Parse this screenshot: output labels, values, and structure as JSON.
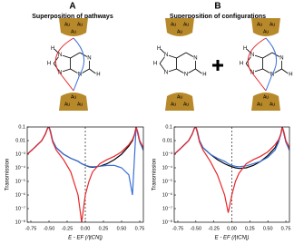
{
  "panels": [
    {
      "letter": "A",
      "title": "Superposition of pathways"
    },
    {
      "letter": "B",
      "title": "Superposition of configurations"
    }
  ],
  "electrode_label": "Au",
  "molecules": [
    {
      "atoms": [
        "N",
        "N",
        "N",
        "N",
        "H",
        "H",
        "H"
      ]
    },
    {
      "atoms": [
        "N",
        "N",
        "N",
        "N",
        "H",
        "H",
        "H"
      ]
    },
    {
      "atoms": [
        "N",
        "N",
        "N",
        "N",
        "H",
        "H",
        "H"
      ]
    }
  ],
  "chart_data": [
    {
      "type": "line",
      "log_y": true,
      "ylabel": "Transmission",
      "xlabel": "E - EF (/|tCN|)",
      "xlim": [
        -0.8,
        0.8
      ],
      "ylim": [
        1e-08,
        0.1
      ],
      "vline": 0,
      "xticks": [
        -0.75,
        {
          "value": -0.5,
          "label": "-0.50"
        },
        -0.25,
        {
          "value": 0,
          "label": "0.00"
        },
        0.25,
        {
          "value": 0.5,
          "label": "0.50"
        },
        0.75
      ],
      "yticks": [
        0.1,
        0.01,
        {
          "value": 0.001,
          "label": "10⁻³"
        },
        {
          "value": 0.0001,
          "label": "10⁻⁴"
        },
        {
          "value": 1e-05,
          "label": "10⁻⁵"
        },
        {
          "value": 1e-06,
          "label": "10⁻⁶"
        },
        {
          "value": 1e-07,
          "label": "10⁻⁷"
        },
        {
          "value": 1e-08,
          "label": "10⁻⁸"
        }
      ],
      "x": [
        -0.8,
        -0.7,
        -0.6,
        -0.55,
        -0.52,
        -0.5,
        -0.48,
        -0.45,
        -0.4,
        -0.3,
        -0.2,
        -0.1,
        -0.05,
        0,
        0.05,
        0.1,
        0.2,
        0.3,
        0.4,
        0.5,
        0.6,
        0.65,
        0.68,
        0.7,
        0.72,
        0.75,
        0.8
      ],
      "series": [
        {
          "color": "#e8262a",
          "values": [
            0.001,
            0.003,
            0.01,
            0.03,
            0.08,
            0.1,
            0.04,
            0.008,
            0.002,
            0.0004,
            5e-05,
            1e-06,
            1e-08,
            1e-06,
            1e-05,
            5e-05,
            0.0002,
            0.0004,
            0.0007,
            0.0015,
            0.005,
            0.012,
            0.03,
            0.1,
            0.05,
            0.01,
            0.003
          ]
        },
        {
          "color": "#3a6fd8",
          "values": [
            0.001,
            0.003,
            0.01,
            0.03,
            0.08,
            0.1,
            0.05,
            0.01,
            0.003,
            0.001,
            0.0005,
            0.0003,
            0.0002,
            0.00015,
            0.00013,
            0.00012,
            0.00013,
            0.00015,
            0.00015,
            0.0001,
            3e-05,
            1e-06,
            0.001,
            0.1,
            0.04,
            0.008,
            0.002
          ]
        },
        {
          "color": "#000000",
          "values": [
            0.001,
            0.003,
            0.01,
            0.03,
            0.08,
            0.1,
            0.05,
            0.01,
            0.003,
            0.001,
            0.0005,
            0.0003,
            0.0002,
            0.00015,
            0.00012,
            0.00011,
            0.00013,
            0.0002,
            0.0004,
            0.001,
            0.004,
            0.01,
            0.03,
            0.1,
            0.04,
            0.008,
            0.002
          ]
        }
      ]
    },
    {
      "type": "line",
      "log_y": true,
      "ylabel": "Transmission",
      "xlabel": "E - EF (/|tCN|)",
      "xlim": [
        -0.8,
        0.8
      ],
      "ylim": [
        1e-08,
        0.1
      ],
      "vline": 0,
      "xticks": [
        -0.75,
        {
          "value": -0.5,
          "label": "-0.50"
        },
        -0.25,
        {
          "value": 0,
          "label": "0.00"
        },
        0.25,
        {
          "value": 0.5,
          "label": "0.50"
        },
        0.75
      ],
      "yticks": [
        0.1,
        0.01,
        {
          "value": 0.001,
          "label": "10⁻³"
        },
        {
          "value": 0.0001,
          "label": "10⁻⁴"
        },
        {
          "value": 1e-05,
          "label": "10⁻⁵"
        },
        {
          "value": 1e-06,
          "label": "10⁻⁶"
        },
        {
          "value": 1e-07,
          "label": "10⁻⁷"
        },
        {
          "value": 1e-08,
          "label": "10⁻⁸"
        }
      ],
      "x": [
        -0.8,
        -0.7,
        -0.6,
        -0.55,
        -0.52,
        -0.5,
        -0.48,
        -0.45,
        -0.4,
        -0.3,
        -0.2,
        -0.1,
        -0.05,
        0,
        0.05,
        0.1,
        0.2,
        0.3,
        0.4,
        0.5,
        0.6,
        0.65,
        0.68,
        0.7,
        0.72,
        0.75,
        0.8
      ],
      "series": [
        {
          "color": "#e8262a",
          "values": [
            0.001,
            0.003,
            0.01,
            0.03,
            0.08,
            0.1,
            0.04,
            0.008,
            0.002,
            0.0003,
            3e-05,
            1e-06,
            5e-08,
            1e-06,
            1e-05,
            4e-05,
            0.0002,
            0.0004,
            0.0007,
            0.0015,
            0.005,
            0.012,
            0.03,
            0.1,
            0.05,
            0.01,
            0.003
          ]
        },
        {
          "color": "#3a6fd8",
          "values": [
            0.001,
            0.003,
            0.01,
            0.03,
            0.08,
            0.1,
            0.05,
            0.01,
            0.003,
            0.001,
            0.0005,
            0.0003,
            0.0002,
            0.00015,
            0.00013,
            0.00012,
            0.00014,
            0.0002,
            0.0003,
            0.0006,
            0.002,
            0.008,
            0.03,
            0.1,
            0.04,
            0.008,
            0.002
          ]
        },
        {
          "color": "#000000",
          "values": [
            0.001,
            0.003,
            0.01,
            0.03,
            0.08,
            0.1,
            0.05,
            0.01,
            0.003,
            0.001,
            0.0004,
            0.0002,
            0.00015,
            0.00012,
            0.0001,
            9e-05,
            0.0001,
            0.00015,
            0.0003,
            0.0008,
            0.003,
            0.01,
            0.03,
            0.1,
            0.04,
            0.008,
            0.002
          ]
        }
      ]
    }
  ]
}
